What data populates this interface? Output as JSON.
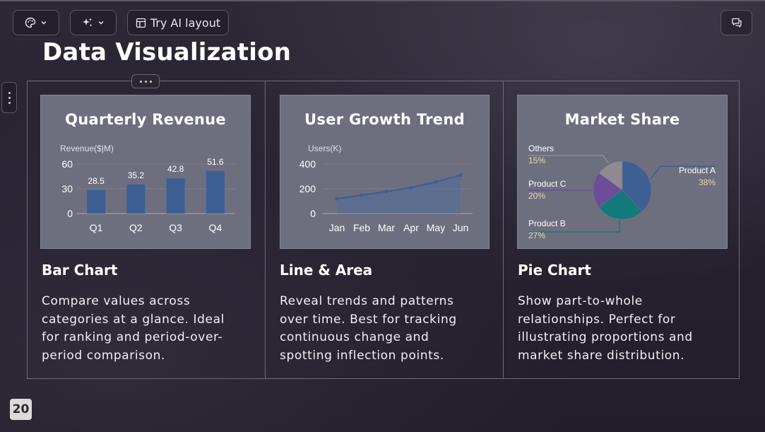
{
  "toolbar": {
    "layout_label": "Try AI layout"
  },
  "page": {
    "title": "Data Visualization",
    "page_number": "20"
  },
  "cards": [
    {
      "thumb_title": "Quarterly Revenue",
      "title": "Bar Chart",
      "description": "Compare values across categories at a glance. Ideal for ranking and period-over-period comparison."
    },
    {
      "thumb_title": "User Growth Trend",
      "title": "Line & Area",
      "description": "Reveal trends and patterns over time. Best for tracking continuous change and spotting inflection points."
    },
    {
      "thumb_title": "Market Share",
      "title": "Pie Chart",
      "description": "Show part-to-whole relationships. Perfect for illustrating proportions and market share distribution."
    }
  ],
  "chart_data": [
    {
      "type": "bar",
      "title": "Quarterly Revenue",
      "ylabel": "Revenue($|M)",
      "categories": [
        "Q1",
        "Q2",
        "Q3",
        "Q4"
      ],
      "values": [
        28.5,
        35.2,
        42.8,
        51.6
      ],
      "value_labels": [
        "28.5",
        "35.2",
        "42.8",
        "51.6"
      ],
      "yticks": [
        0,
        30,
        60
      ],
      "ylim": [
        0,
        60
      ],
      "color": "#3e5f94"
    },
    {
      "type": "area",
      "title": "User Growth Trend",
      "ylabel": "Users(K)",
      "categories": [
        "Jan",
        "Feb",
        "Mar",
        "Apr",
        "May",
        "Jun"
      ],
      "values": [
        120,
        148,
        178,
        210,
        255,
        310
      ],
      "yticks": [
        0,
        200,
        400
      ],
      "ylim": [
        0,
        400
      ],
      "color": "#3e5f94"
    },
    {
      "type": "pie",
      "title": "Market Share",
      "slices": [
        {
          "name": "Product A",
          "value": 38,
          "label": "38%",
          "color": "#3e5f94"
        },
        {
          "name": "Product B",
          "value": 27,
          "label": "27%",
          "color": "#117a7a"
        },
        {
          "name": "Product C",
          "value": 20,
          "label": "20%",
          "color": "#6b4d9a"
        },
        {
          "name": "Others",
          "value": 15,
          "label": "15%",
          "color": "#8f8a94"
        }
      ]
    }
  ]
}
